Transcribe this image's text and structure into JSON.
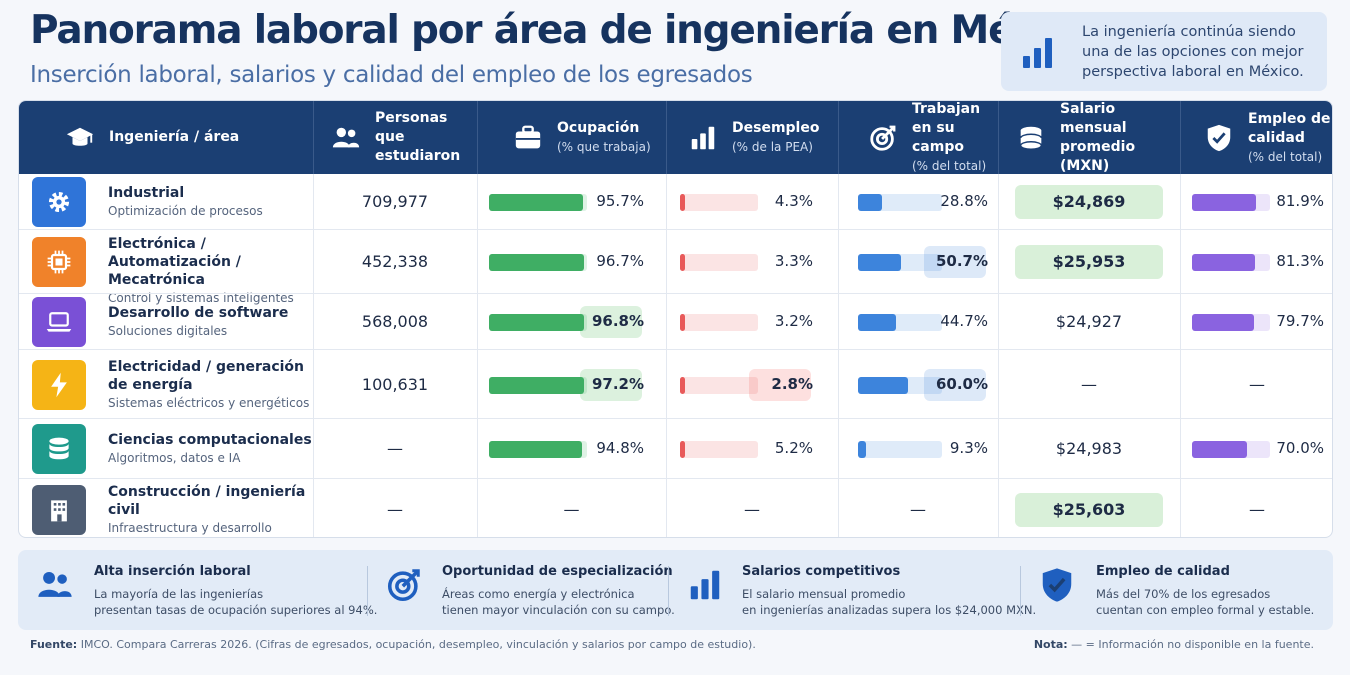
{
  "header": {
    "title": "Panorama laboral por área de ingeniería en México",
    "subtitle": "Inserción laboral, salarios y calidad del empleo de los egresados"
  },
  "callout": {
    "text": "La ingeniería continúa siendo una de las opciones con mejor perspectiva laboral en México.",
    "icon": "bar-chart-icon"
  },
  "columns": [
    {
      "label": "Ingeniería / área",
      "sub": "",
      "icon": "graduation-cap-icon"
    },
    {
      "label": "Personas que estudiaron",
      "sub": "",
      "icon": "people-icon"
    },
    {
      "label": "Ocupación",
      "sub": "(% que trabaja)",
      "icon": "briefcase-icon"
    },
    {
      "label": "Desempleo",
      "sub": "(% de la PEA)",
      "icon": "bar-chart-icon"
    },
    {
      "label": "Trabajan en su campo",
      "sub": "(% del total)",
      "icon": "target-icon"
    },
    {
      "label": "Salario mensual promedio (MXN)",
      "sub": "",
      "icon": "coins-icon"
    },
    {
      "label": "Empleo de calidad",
      "sub": "(% del total)",
      "icon": "shield-check-icon"
    }
  ],
  "colors": {
    "header_bg": "#1b3f73",
    "occupation": "#3fae64",
    "unemployment": "#e85a5a",
    "field": "#3d84dc",
    "quality": "#8a63e0",
    "salary_highlight": "#d9f0d9"
  },
  "chart_data": {
    "type": "table",
    "title": "Panorama laboral por área de ingeniería en México",
    "subtitle": "Inserción laboral, salarios y calidad del empleo de los egresados",
    "rows": [
      {
        "area": "Industrial",
        "description": "Optimización de procesos",
        "icon": "gear-icon",
        "icon_color": "#2f74d8",
        "students": "709,977",
        "occupation": 95.7,
        "occupation_label": "95.7%",
        "unemployment": 4.3,
        "unemployment_label": "4.3%",
        "field": 28.8,
        "field_label": "28.8%",
        "salary": "$24,869",
        "quality": 81.9,
        "quality_label": "81.9%"
      },
      {
        "area": "Electrónica / Automatización / Mecatrónica",
        "description": "Control y sistemas inteligentes",
        "icon": "chip-icon",
        "icon_color": "#f0822a",
        "students": "452,338",
        "occupation": 96.7,
        "occupation_label": "96.7%",
        "unemployment": 3.3,
        "unemployment_label": "3.3%",
        "field": 50.7,
        "field_label": "50.7%",
        "salary": "$25,953",
        "quality": 81.3,
        "quality_label": "81.3%"
      },
      {
        "area": "Desarrollo de software",
        "description": "Soluciones digitales",
        "icon": "laptop-icon",
        "icon_color": "#7a50d6",
        "students": "568,008",
        "occupation": 96.8,
        "occupation_label": "96.8%",
        "unemployment": 3.2,
        "unemployment_label": "3.2%",
        "field": 44.7,
        "field_label": "44.7%",
        "salary": "$24,927",
        "quality": 79.7,
        "quality_label": "79.7%"
      },
      {
        "area": "Electricidad / generación de energía",
        "description": "Sistemas eléctricos y energéticos",
        "icon": "lightning-icon",
        "icon_color": "#f5b416",
        "students": "100,631",
        "occupation": 97.2,
        "occupation_label": "97.2%",
        "unemployment": 2.8,
        "unemployment_label": "2.8%",
        "field": 60.0,
        "field_label": "60.0%",
        "salary": "—",
        "quality": null,
        "quality_label": "—"
      },
      {
        "area": "Ciencias computacionales",
        "description": "Algoritmos, datos e IA",
        "icon": "database-icon",
        "icon_color": "#1f9a8c",
        "students": "—",
        "occupation": 94.8,
        "occupation_label": "94.8%",
        "unemployment": 5.2,
        "unemployment_label": "5.2%",
        "field": 9.3,
        "field_label": "9.3%",
        "salary": "$24,983",
        "quality": 70.0,
        "quality_label": "70.0%"
      },
      {
        "area": "Construcción / ingeniería civil",
        "description": "Infraestructura y desarrollo urbano",
        "icon": "building-icon",
        "icon_color": "#4e5d73",
        "students": "—",
        "occupation": null,
        "occupation_label": "—",
        "unemployment": null,
        "unemployment_label": "—",
        "field": null,
        "field_label": "—",
        "salary": "$25,603",
        "quality": null,
        "quality_label": "—"
      }
    ],
    "ranges": {
      "occupation": [
        0,
        100
      ],
      "unemployment": [
        0,
        100
      ],
      "field": [
        0,
        100
      ],
      "quality": [
        0,
        100
      ]
    }
  },
  "bottom": [
    {
      "title": "Alta inserción laboral",
      "text1": "La mayoría de las ingenierías",
      "text2": "presentan tasas de ocupación superiores al 94%.",
      "icon": "people-icon"
    },
    {
      "title": "Oportunidad de especialización",
      "text1": "Áreas como energía y electrónica",
      "text2": "tienen mayor vinculación con su campo.",
      "icon": "target-icon"
    },
    {
      "title": "Salarios competitivos",
      "text1": "El salario mensual promedio",
      "text2": "en ingenierías analizadas supera los $24,000 MXN.",
      "icon": "bar-chart-icon"
    },
    {
      "title": "Empleo de calidad",
      "text1": "Más del 70% de los egresados",
      "text2": "cuentan con empleo formal y estable.",
      "icon": "shield-check-icon"
    }
  ],
  "footer": {
    "source_label": "Fuente:",
    "source_text": "IMCO. Compara Carreras 2026. (Cifras de egresados, ocupación, desempleo, vinculación y salarios por campo de estudio).",
    "note_label": "Nota:",
    "note_text": "— = Información no disponible en la fuente."
  }
}
